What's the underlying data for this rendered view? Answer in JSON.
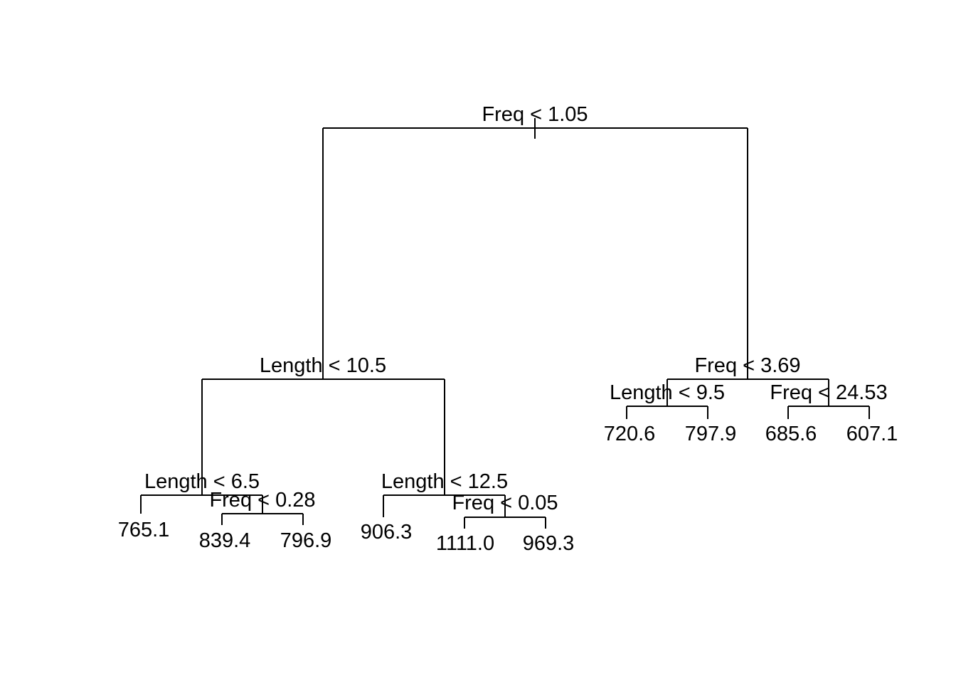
{
  "tree": {
    "nodes": {
      "root": {
        "split": "Freq < 1.05"
      },
      "left": {
        "split": "Length < 10.5"
      },
      "left_left": {
        "split": "Length < 6.5"
      },
      "left_left_right": {
        "split": "Freq < 0.28"
      },
      "left_right": {
        "split": "Length < 12.5"
      },
      "left_right_right": {
        "split": "Freq < 0.05"
      },
      "right": {
        "split": "Freq < 3.69"
      },
      "right_left": {
        "split": "Length < 9.5"
      },
      "right_right": {
        "split": "Freq < 24.53"
      }
    },
    "leaves": {
      "l1": "765.1",
      "l2": "839.4",
      "l3": "796.9",
      "l4": "906.3",
      "l5": "1111.0",
      "l6": "969.3",
      "l7": "720.6",
      "l8": "797.9",
      "l9": "685.6",
      "l10": "607.1"
    }
  }
}
